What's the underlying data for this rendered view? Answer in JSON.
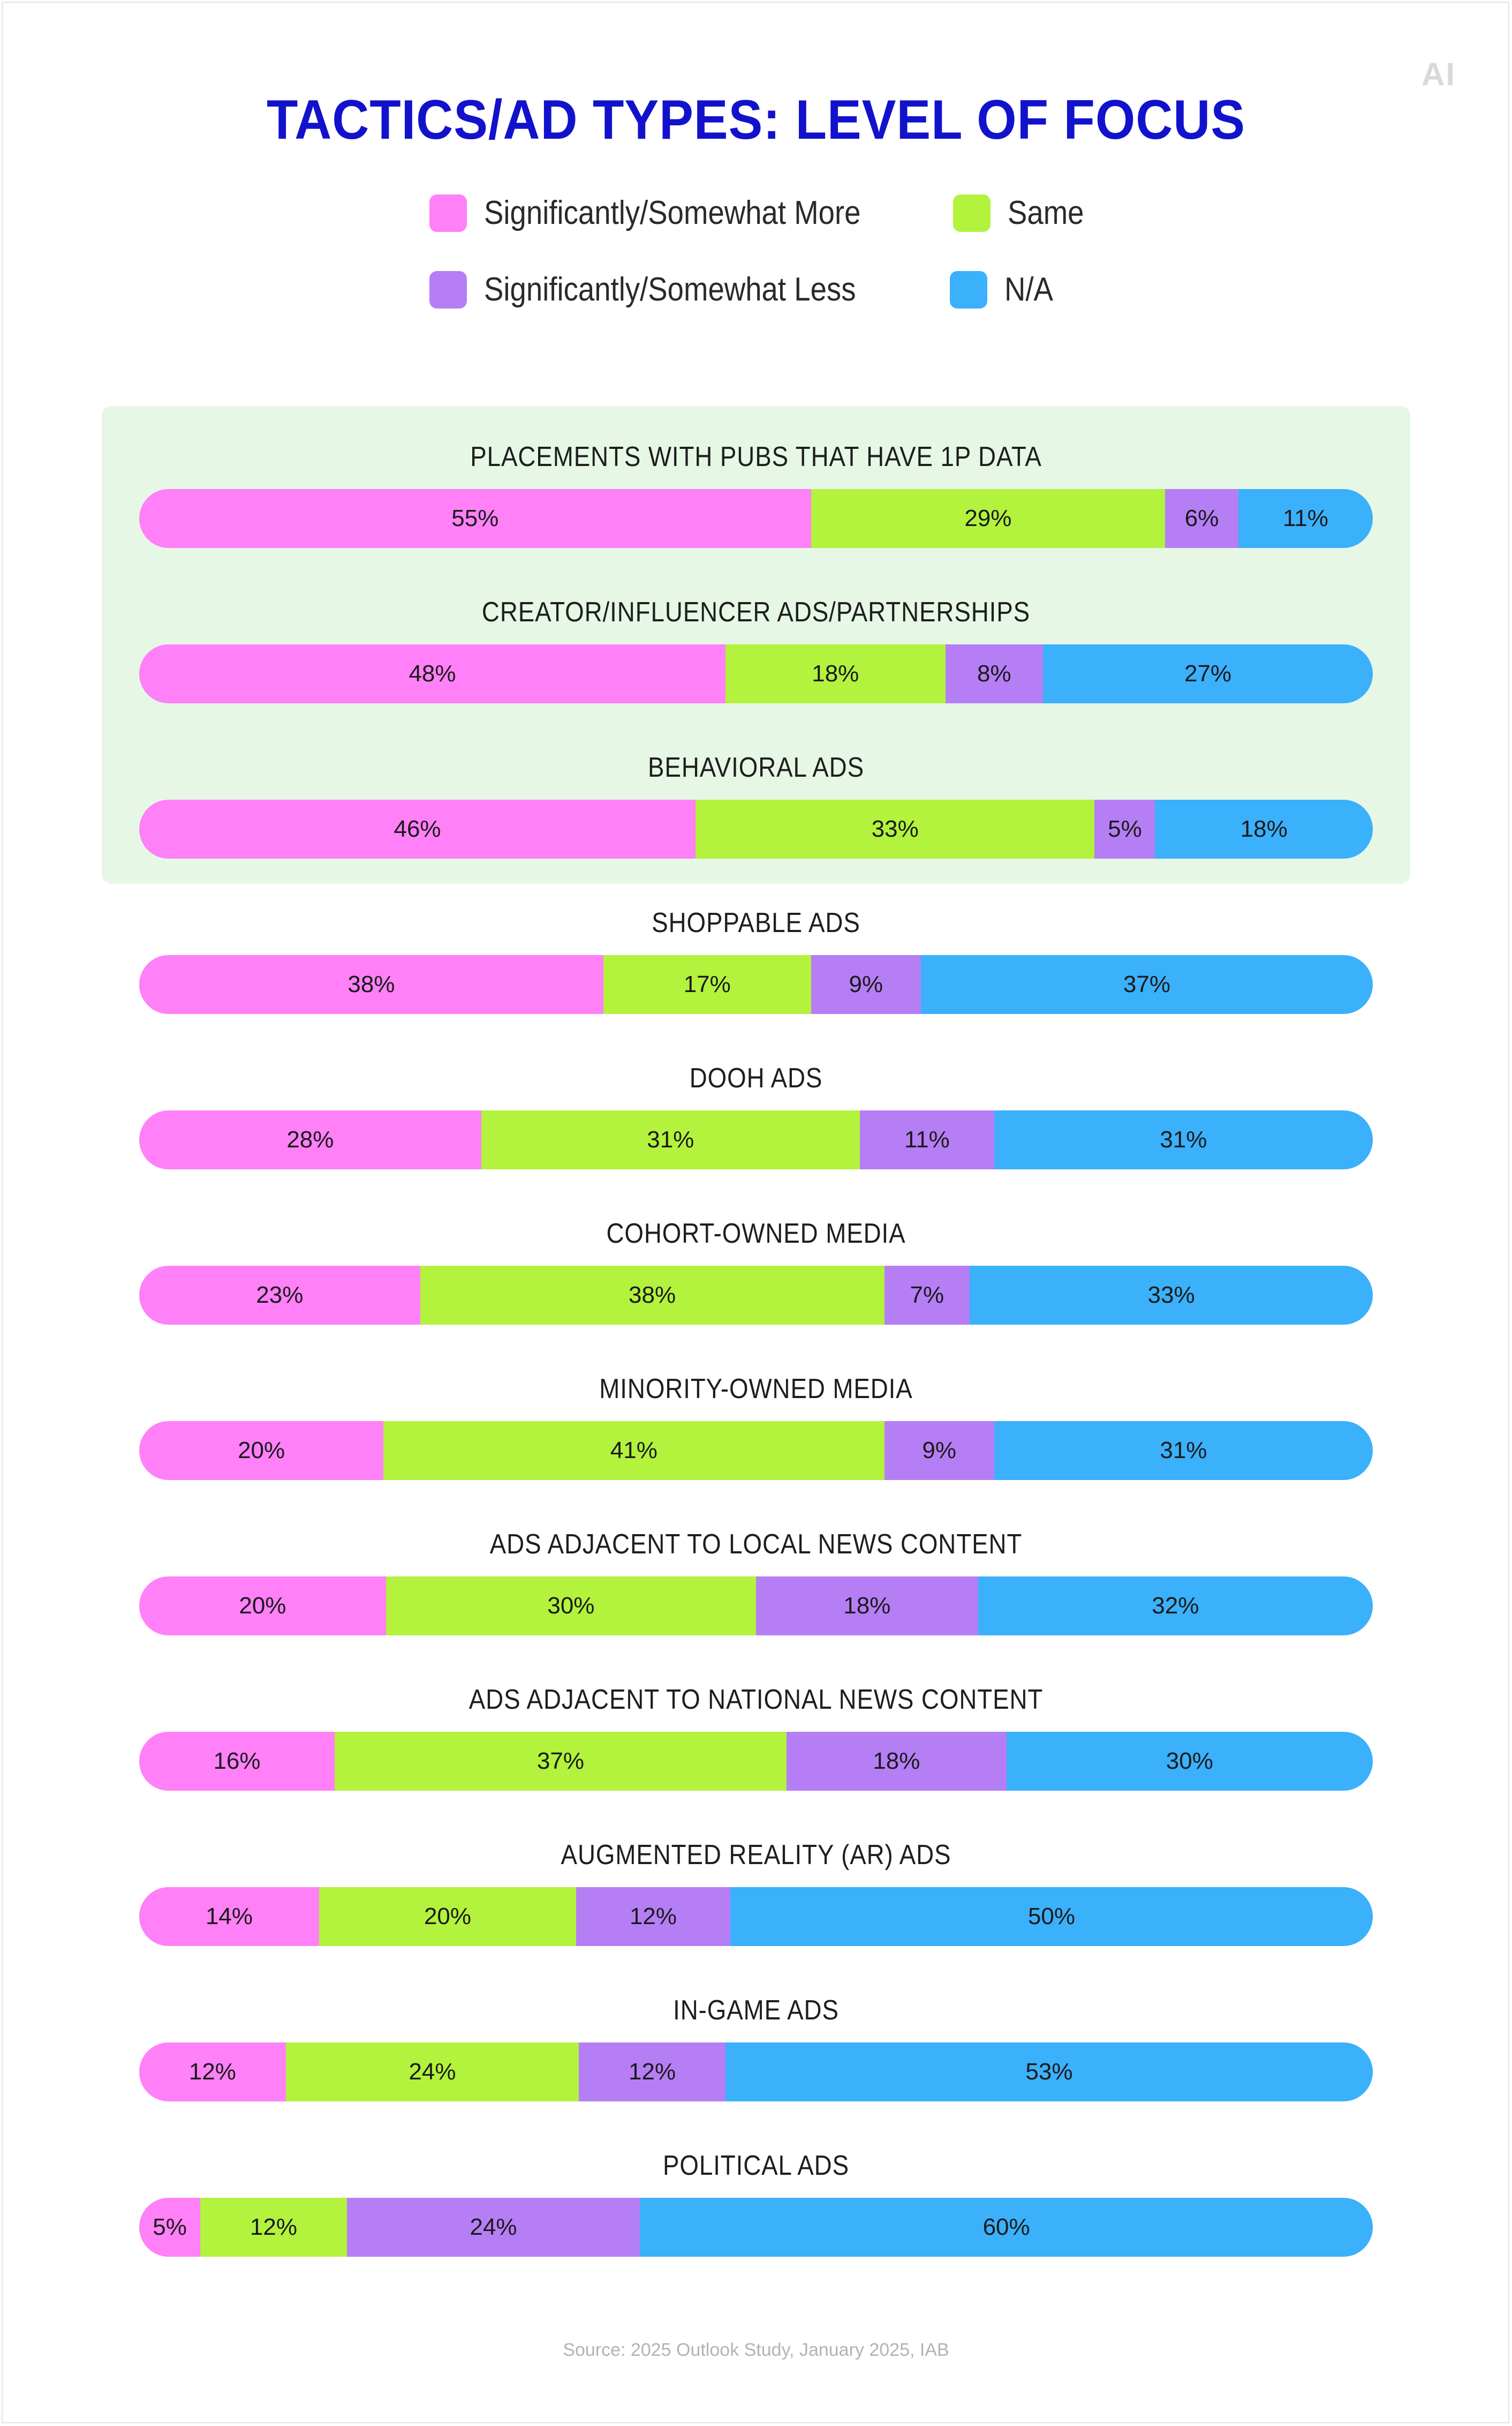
{
  "brand": {
    "logo": "AI"
  },
  "colors": {
    "more": "#ff80f7",
    "same": "#b3f23d",
    "less": "#b57ef5",
    "na": "#3bb0fb",
    "title": "#1212cc"
  },
  "legend": [
    {
      "label": "Significantly/Somewhat More",
      "color": "#ff80f7"
    },
    {
      "label": "Same",
      "color": "#b3f23d"
    },
    {
      "label": "Significantly/Somewhat Less",
      "color": "#b57ef5"
    },
    {
      "label": "N/A",
      "color": "#3bb0fb"
    }
  ],
  "chart_data": {
    "type": "bar",
    "orientation": "horizontal",
    "stacked": true,
    "title": "TACTICS/AD TYPES: LEVEL OF FOCUS",
    "legend_position": "top",
    "grid": false,
    "unit": "%",
    "categories": [
      "PLACEMENTS WITH PUBS THAT HAVE 1P DATA",
      "CREATOR/INFLUENCER ADS/PARTNERSHIPS",
      "BEHAVIORAL ADS",
      "SHOPPABLE ADS",
      "DOOH ADS",
      "COHORT-OWNED MEDIA",
      "MINORITY-OWNED MEDIA",
      "ADS ADJACENT TO LOCAL NEWS CONTENT",
      "ADS ADJACENT TO NATIONAL NEWS CONTENT",
      "AUGMENTED REALITY (AR) ADS",
      "IN-GAME ADS",
      "POLITICAL ADS"
    ],
    "highlighted_categories": 3,
    "series": [
      {
        "name": "Significantly/Somewhat More",
        "color": "#ff80f7",
        "values": [
          55,
          48,
          46,
          38,
          28,
          23,
          20,
          20,
          16,
          14,
          12,
          5
        ]
      },
      {
        "name": "Same",
        "color": "#b3f23d",
        "values": [
          29,
          18,
          33,
          17,
          31,
          38,
          41,
          30,
          37,
          20,
          24,
          12
        ]
      },
      {
        "name": "Significantly/Somewhat Less",
        "color": "#b57ef5",
        "values": [
          6,
          8,
          5,
          9,
          11,
          7,
          9,
          18,
          18,
          12,
          12,
          24
        ]
      },
      {
        "name": "N/A",
        "color": "#3bb0fb",
        "values": [
          11,
          27,
          18,
          37,
          31,
          33,
          31,
          32,
          30,
          50,
          53,
          60
        ]
      }
    ]
  },
  "source": "Source: 2025 Outlook Study, January 2025, IAB"
}
